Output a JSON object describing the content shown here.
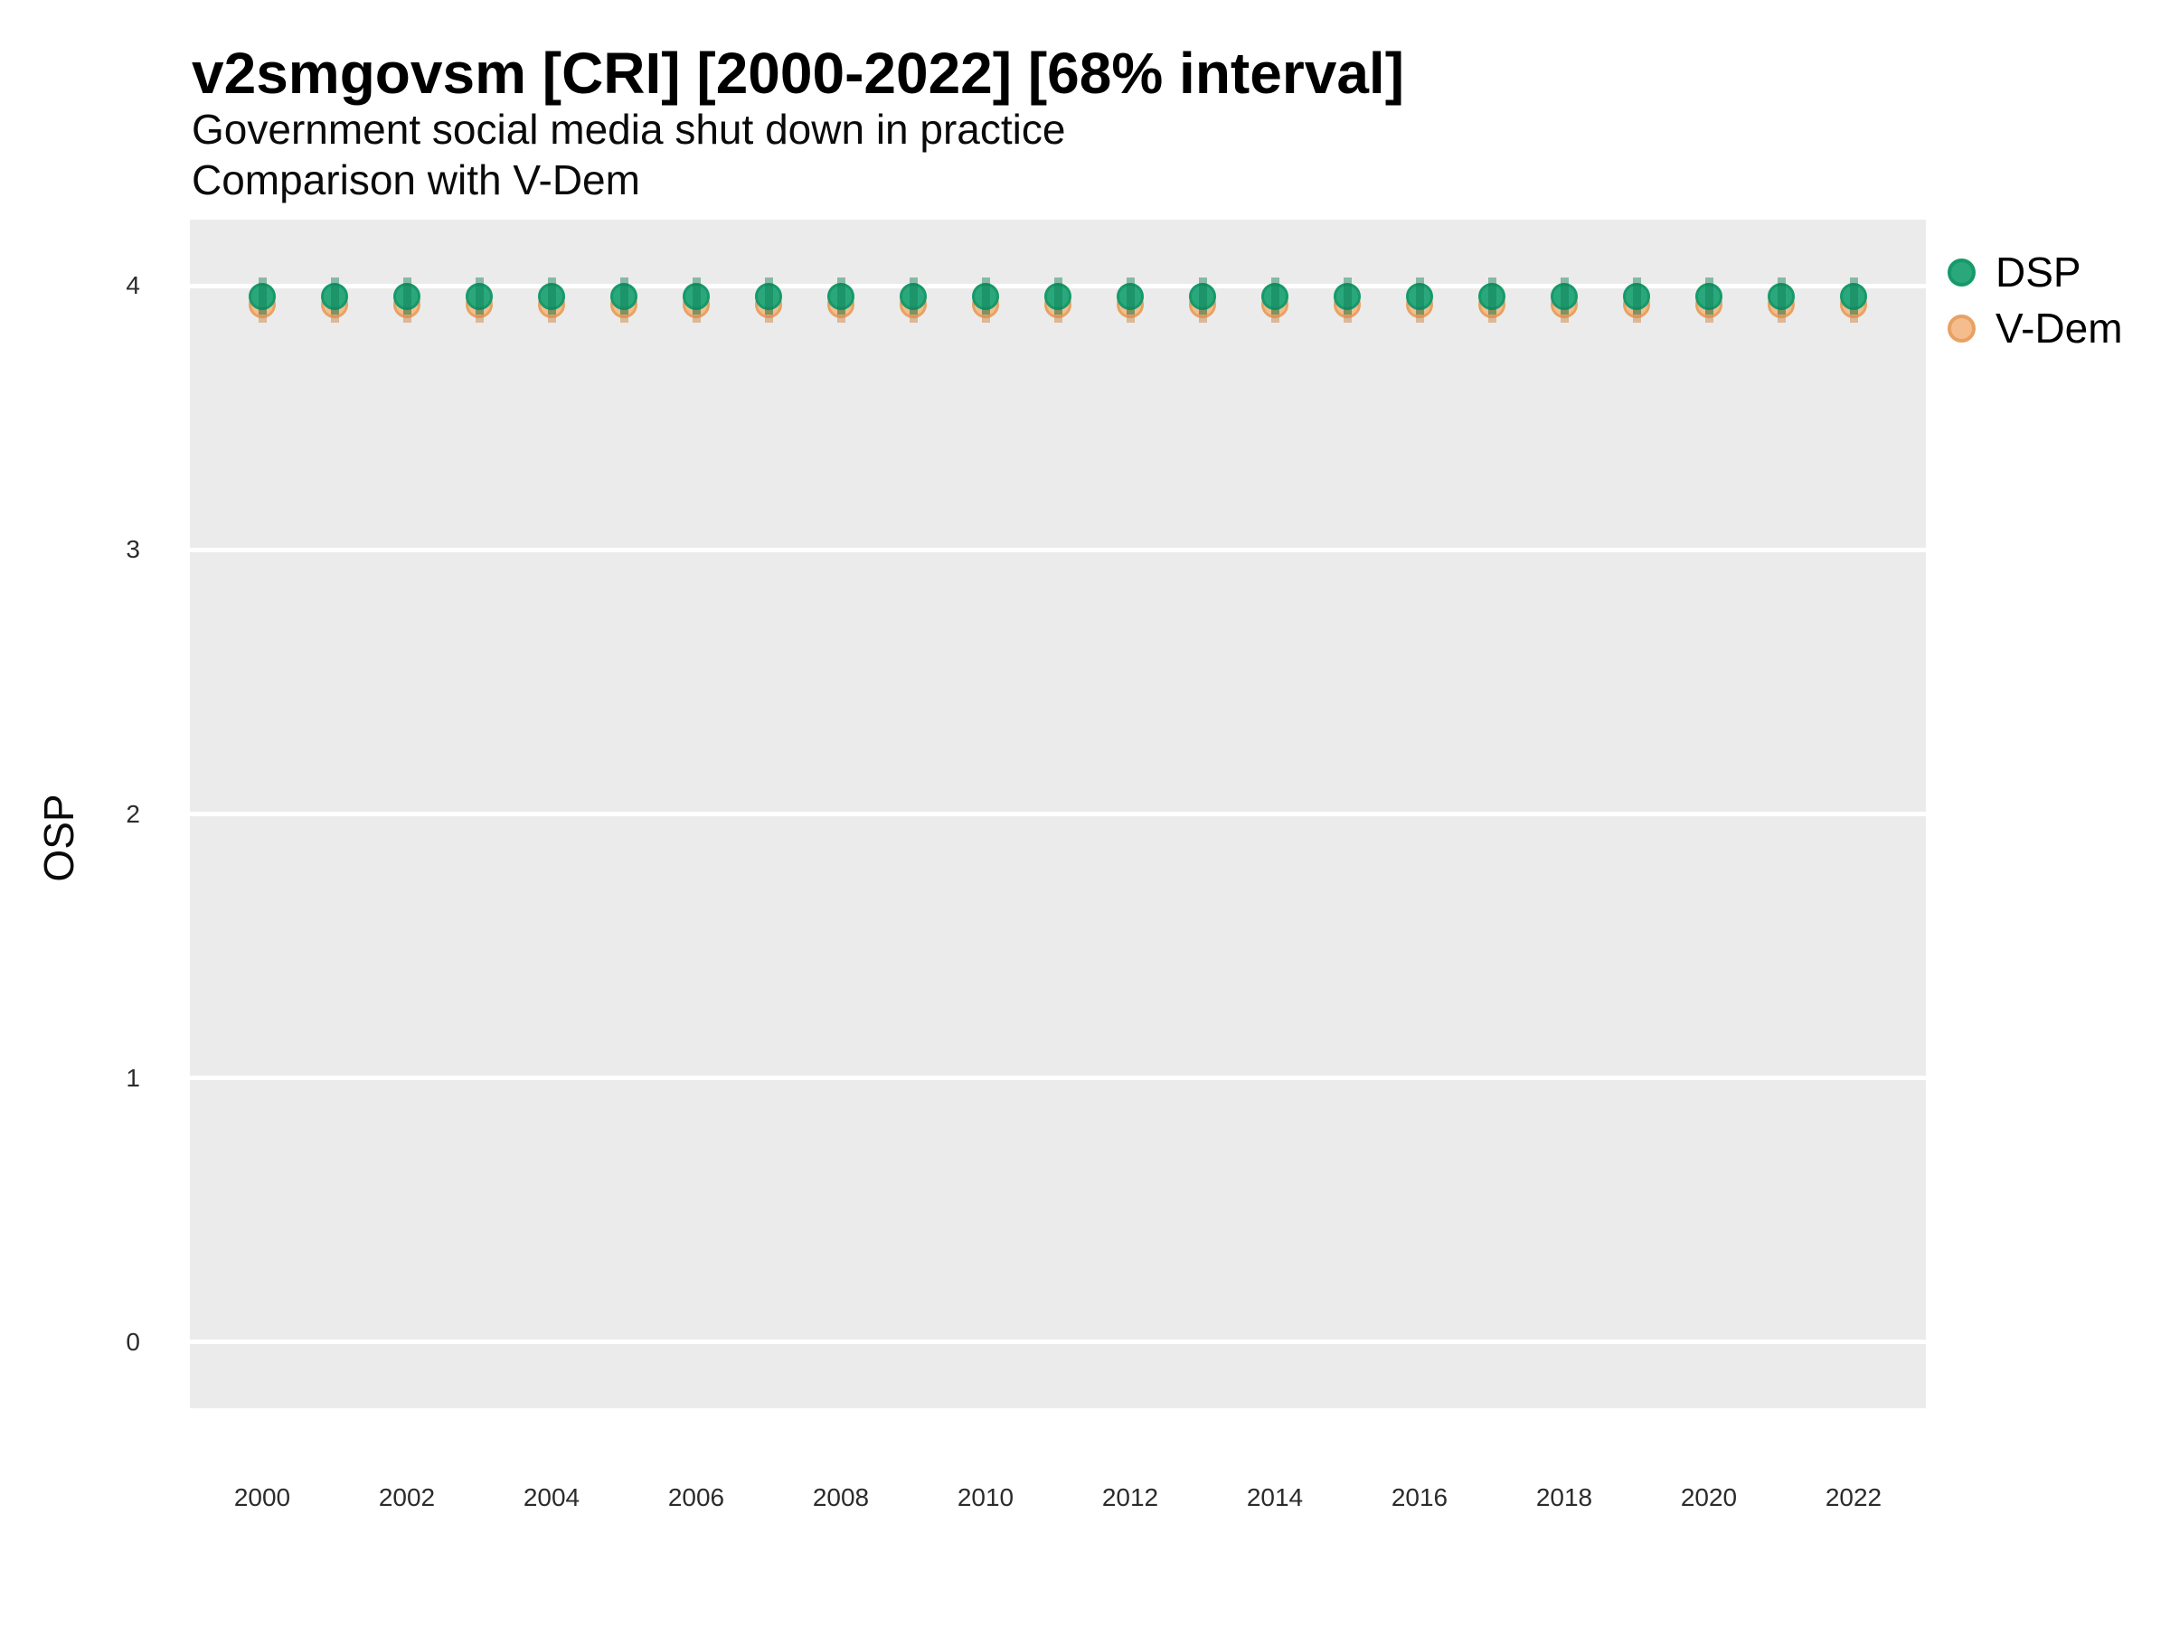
{
  "header": {
    "title": "v2smgovsm [CRI] [2000-2022] [68% interval]",
    "subtitle": "Government social media shut down in practice",
    "subtitle2": "Comparison with V-Dem"
  },
  "legend": {
    "position": "right",
    "items": [
      {
        "label": "DSP",
        "fill": "#2aa87c",
        "stroke": "#17996a"
      },
      {
        "label": "V-Dem",
        "fill": "#f5bd8e",
        "stroke": "#e7a263"
      }
    ]
  },
  "chart_data": {
    "type": "scatter",
    "title": "v2smgovsm [CRI] [2000-2022] [68% interval]",
    "subtitle": "Government social media shut down in practice",
    "subtitle2": "Comparison with V-Dem",
    "xlabel": "",
    "ylabel": "OSP",
    "x": [
      2000,
      2001,
      2002,
      2003,
      2004,
      2005,
      2006,
      2007,
      2008,
      2009,
      2010,
      2011,
      2012,
      2013,
      2014,
      2015,
      2016,
      2017,
      2018,
      2019,
      2020,
      2021,
      2022
    ],
    "xticks": [
      2000,
      2002,
      2004,
      2006,
      2008,
      2010,
      2012,
      2014,
      2016,
      2018,
      2020,
      2022
    ],
    "yticks": [
      0,
      1,
      2,
      3,
      4
    ],
    "ylim": [
      -0.25,
      4.25
    ],
    "grid": true,
    "plot_background": "#ebebeb",
    "gridline_color": "#ffffff",
    "legend_position": "right",
    "series": [
      {
        "name": "V-Dem",
        "fill": "#f5bd8e",
        "stroke": "#e7a263",
        "interval_color": "rgba(210,140,80,0.55)",
        "values": [
          3.93,
          3.93,
          3.93,
          3.93,
          3.93,
          3.93,
          3.93,
          3.93,
          3.93,
          3.93,
          3.93,
          3.93,
          3.93,
          3.93,
          3.93,
          3.93,
          3.93,
          3.93,
          3.93,
          3.93,
          3.93,
          3.93,
          3.93
        ],
        "interval_low": [
          3.86,
          3.86,
          3.86,
          3.86,
          3.86,
          3.86,
          3.86,
          3.86,
          3.86,
          3.86,
          3.86,
          3.86,
          3.86,
          3.86,
          3.86,
          3.86,
          3.86,
          3.86,
          3.86,
          3.86,
          3.86,
          3.86,
          3.86
        ],
        "interval_high": [
          4.0,
          4.0,
          4.0,
          4.0,
          4.0,
          4.0,
          4.0,
          4.0,
          4.0,
          4.0,
          4.0,
          4.0,
          4.0,
          4.0,
          4.0,
          4.0,
          4.0,
          4.0,
          4.0,
          4.0,
          4.0,
          4.0,
          4.0
        ]
      },
      {
        "name": "DSP",
        "fill": "#2aa87c",
        "stroke": "#17996a",
        "interval_color": "rgba(13,125,82,0.45)",
        "values": [
          3.96,
          3.96,
          3.96,
          3.96,
          3.96,
          3.96,
          3.96,
          3.96,
          3.96,
          3.96,
          3.96,
          3.96,
          3.96,
          3.96,
          3.96,
          3.96,
          3.96,
          3.96,
          3.96,
          3.96,
          3.96,
          3.96,
          3.96
        ],
        "interval_low": [
          3.89,
          3.89,
          3.89,
          3.89,
          3.89,
          3.89,
          3.89,
          3.89,
          3.89,
          3.89,
          3.89,
          3.89,
          3.89,
          3.89,
          3.89,
          3.89,
          3.89,
          3.89,
          3.89,
          3.89,
          3.89,
          3.89,
          3.89
        ],
        "interval_high": [
          4.03,
          4.03,
          4.03,
          4.03,
          4.03,
          4.03,
          4.03,
          4.03,
          4.03,
          4.03,
          4.03,
          4.03,
          4.03,
          4.03,
          4.03,
          4.03,
          4.03,
          4.03,
          4.03,
          4.03,
          4.03,
          4.03,
          4.03
        ]
      }
    ]
  }
}
